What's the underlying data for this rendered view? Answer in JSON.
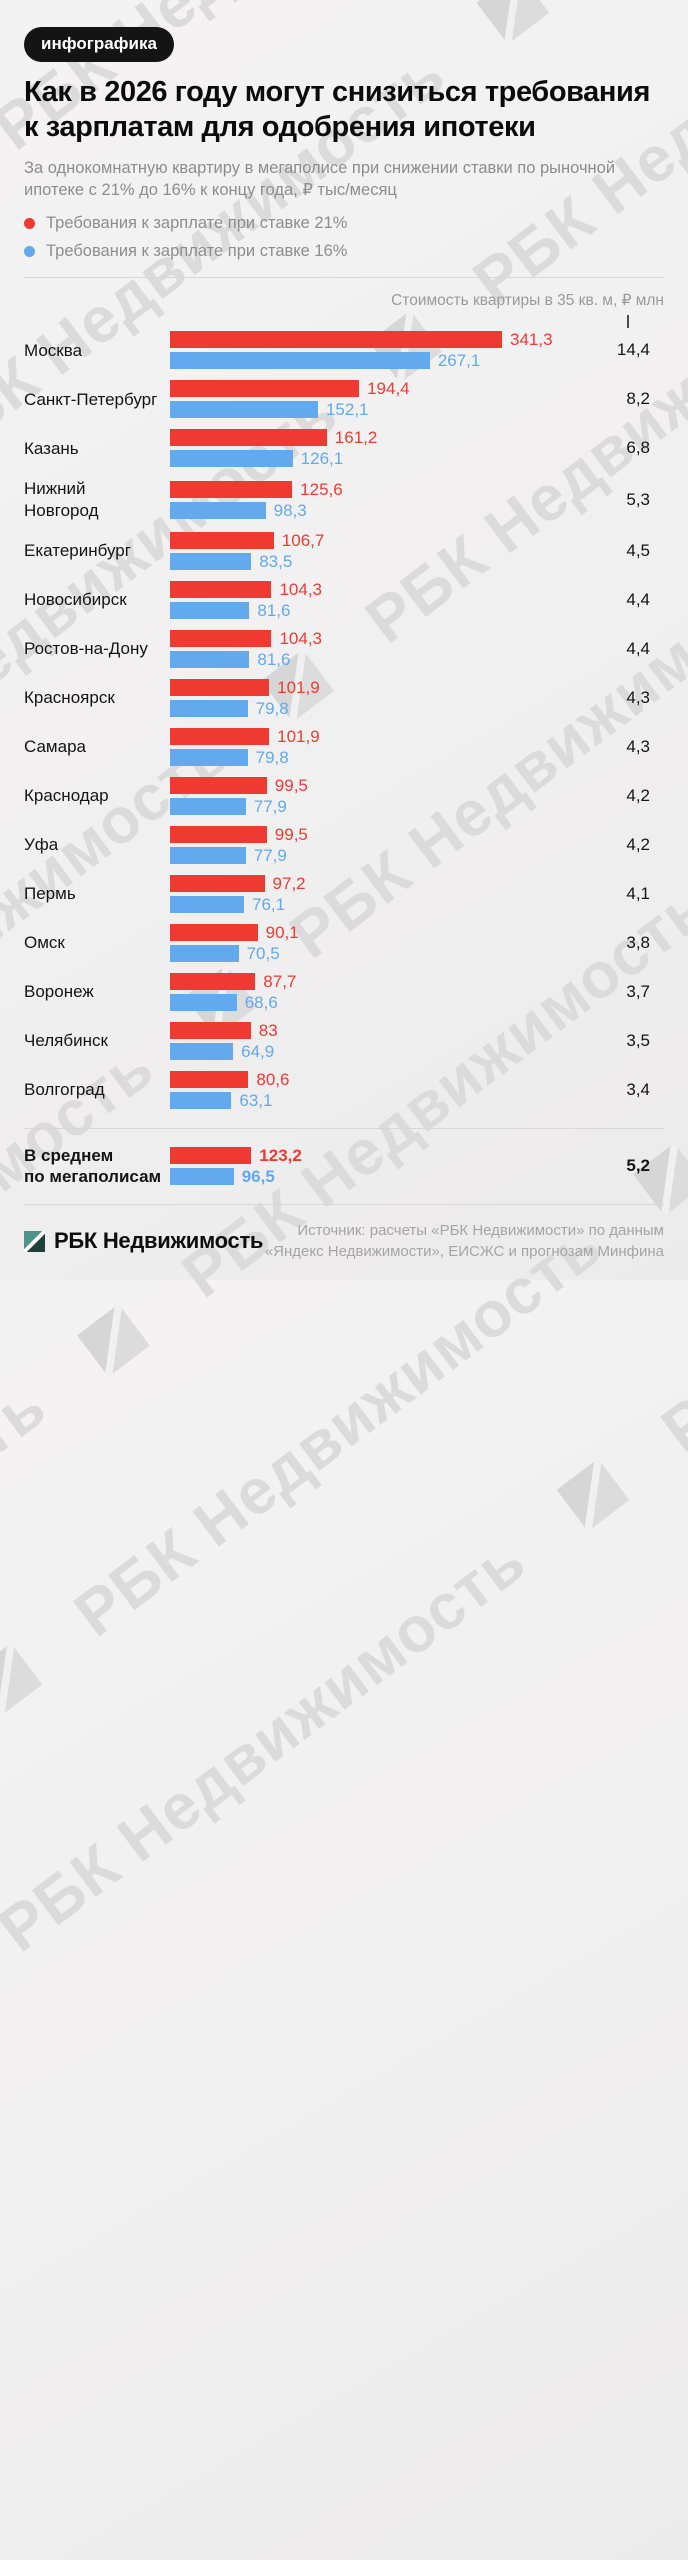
{
  "badge": {
    "label": "инфографика"
  },
  "title": "Как в 2026 году могут снизиться требования к зарплатам для одобрения ипотеки",
  "subtitle": "За однокомнатную квартиру в мегаполисе при снижении ставки по рыночной ипотеке с 21% до 16% к концу года, ₽ тыс/месяц",
  "legend": [
    {
      "label": "Требования к зарплате при ставке 21%",
      "color": "#ef3a32"
    },
    {
      "label": "Требования к зарплате при ставке 16%",
      "color": "#62a9ed"
    }
  ],
  "right_column_header": "Стоимость квартиры в 35 кв. м, ₽ млн",
  "chart_data": {
    "type": "bar",
    "orientation": "horizontal",
    "title": "Как в 2026 году могут снизиться требования к зарплатам для одобрения ипотеки",
    "unit": "₽ тыс/месяц",
    "xlim": [
      0,
      341.3
    ],
    "categories": [
      "Москва",
      "Санкт-Петербург",
      "Казань",
      "Нижний Новгород",
      "Екатеринбург",
      "Новосибирск",
      "Ростов-на-Дону",
      "Красноярск",
      "Самара",
      "Краснодар",
      "Уфа",
      "Пермь",
      "Омск",
      "Воронеж",
      "Челябинск",
      "Волгоград"
    ],
    "series": [
      {
        "name": "Требования к зарплате при ставке 21%",
        "color": "#ef3a32",
        "values": [
          341.3,
          194.4,
          161.2,
          125.6,
          106.7,
          104.3,
          104.3,
          101.9,
          101.9,
          99.5,
          99.5,
          97.2,
          90.1,
          87.7,
          83,
          80.6
        ]
      },
      {
        "name": "Требования к зарплате при ставке 16%",
        "color": "#62a9ed",
        "values": [
          267.1,
          152.1,
          126.1,
          98.3,
          83.5,
          81.6,
          81.6,
          79.8,
          79.8,
          77.9,
          77.9,
          76.1,
          70.5,
          68.6,
          64.9,
          63.1
        ]
      }
    ],
    "apartment_cost_mln": [
      14.4,
      8.2,
      6.8,
      5.3,
      4.5,
      4.4,
      4.4,
      4.3,
      4.3,
      4.2,
      4.2,
      4.1,
      3.8,
      3.7,
      3.5,
      3.4
    ],
    "average": {
      "label_line1": "В среднем",
      "label_line2": "по мегаполисам",
      "rate21": 123.2,
      "rate16": 96.5,
      "apartment_cost_mln": 5.2
    }
  },
  "footer": {
    "logo_text": "РБК Недвижимость",
    "source_line1": "Источник: расчеты «РБК Недвижимости» по данным",
    "source_line2": "«Яндекс Недвижимости», ЕИСЖС и прогнозам Минфина"
  },
  "watermark": {
    "text": "РБК Недвижимость"
  }
}
